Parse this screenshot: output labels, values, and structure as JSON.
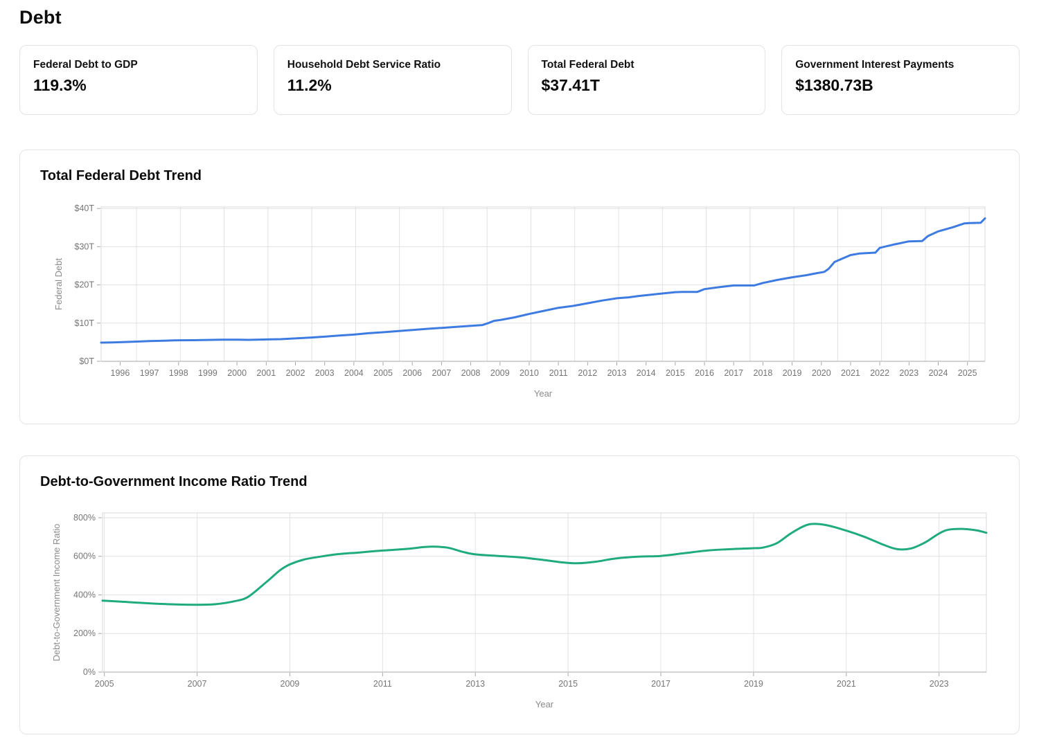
{
  "page": {
    "title": "Debt"
  },
  "stat_cards": [
    {
      "label": "Federal Debt to GDP",
      "value": "119.3%"
    },
    {
      "label": "Household Debt Service Ratio",
      "value": "11.2%"
    },
    {
      "label": "Total Federal Debt",
      "value": "$37.41T"
    },
    {
      "label": "Government Interest Payments",
      "value": "$1380.73B"
    }
  ],
  "chart_data": [
    {
      "type": "line",
      "title": "Total Federal Debt Trend",
      "xlabel": "Year",
      "ylabel": "Federal Debt",
      "line_color": "#3e7be0",
      "grid": true,
      "legend": "none",
      "xlim": [
        1995.35,
        2025.6
      ],
      "ylim": [
        0,
        40.4
      ],
      "x_ticks": {
        "values": [
          1996,
          1997,
          1998,
          1999,
          2000,
          2001,
          2002,
          2003,
          2004,
          2005,
          2006,
          2007,
          2008,
          2009,
          2010,
          2011,
          2012,
          2013,
          2014,
          2015,
          2016,
          2017,
          2018,
          2019,
          2020,
          2021,
          2022,
          2023,
          2024,
          2025
        ],
        "labels": [
          "1996",
          "1997",
          "1998",
          "1999",
          "2000",
          "2001",
          "2002",
          "2003",
          "2004",
          "2005",
          "2006",
          "2007",
          "2008",
          "2009",
          "2010",
          "2011",
          "2012",
          "2013",
          "2014",
          "2015",
          "2016",
          "2017",
          "2018",
          "2019",
          "2020",
          "2021",
          "2022",
          "2023",
          "2024",
          "2025"
        ]
      },
      "y_ticks": {
        "values": [
          0,
          10,
          20,
          30,
          40
        ],
        "labels": [
          "$0T",
          "$10T",
          "$20T",
          "$30T",
          "$40T"
        ]
      },
      "x_gridlines": [
        1996.56,
        1998.06,
        1999.56,
        2001.06,
        2002.56,
        2004.06,
        2005.56,
        2007.06,
        2008.56,
        2010.06,
        2011.56,
        2013.06,
        2014.56,
        2016.06,
        2017.56,
        2019.06,
        2020.56,
        2022.06,
        2023.56,
        2025.06
      ],
      "y_gridlines": [
        10,
        20,
        30,
        40
      ],
      "smooth": false,
      "series": [
        {
          "name": "Total Federal Debt ($T)",
          "points": [
            [
              1995.35,
              4.9
            ],
            [
              1995.7,
              4.95
            ],
            [
              1996,
              5.0
            ],
            [
              1996.5,
              5.15
            ],
            [
              1997,
              5.3
            ],
            [
              1997.5,
              5.4
            ],
            [
              1998,
              5.5
            ],
            [
              1998.5,
              5.52
            ],
            [
              1999,
              5.6
            ],
            [
              1999.5,
              5.65
            ],
            [
              2000,
              5.67
            ],
            [
              2000.4,
              5.62
            ],
            [
              2001,
              5.72
            ],
            [
              2001.5,
              5.8
            ],
            [
              2002,
              6.0
            ],
            [
              2002.5,
              6.2
            ],
            [
              2003,
              6.45
            ],
            [
              2003.5,
              6.75
            ],
            [
              2004,
              7.0
            ],
            [
              2004.5,
              7.35
            ],
            [
              2005,
              7.6
            ],
            [
              2005.5,
              7.9
            ],
            [
              2006,
              8.2
            ],
            [
              2006.5,
              8.5
            ],
            [
              2007,
              8.75
            ],
            [
              2007.5,
              9.0
            ],
            [
              2008,
              9.3
            ],
            [
              2008.4,
              9.5
            ],
            [
              2008.6,
              10.0
            ],
            [
              2008.8,
              10.6
            ],
            [
              2009,
              10.8
            ],
            [
              2009.5,
              11.5
            ],
            [
              2010,
              12.4
            ],
            [
              2010.5,
              13.2
            ],
            [
              2011,
              14.0
            ],
            [
              2011.5,
              14.5
            ],
            [
              2012,
              15.2
            ],
            [
              2012.5,
              15.9
            ],
            [
              2013,
              16.5
            ],
            [
              2013.4,
              16.74
            ],
            [
              2013.75,
              17.1
            ],
            [
              2014,
              17.3
            ],
            [
              2014.5,
              17.7
            ],
            [
              2015,
              18.1
            ],
            [
              2015.25,
              18.15
            ],
            [
              2015.75,
              18.15
            ],
            [
              2016,
              18.9
            ],
            [
              2016.5,
              19.4
            ],
            [
              2017,
              19.85
            ],
            [
              2017.7,
              19.85
            ],
            [
              2018,
              20.5
            ],
            [
              2018.5,
              21.3
            ],
            [
              2019,
              22.0
            ],
            [
              2019.5,
              22.55
            ],
            [
              2019.8,
              23.0
            ],
            [
              2020.1,
              23.4
            ],
            [
              2020.25,
              24.2
            ],
            [
              2020.45,
              26.0
            ],
            [
              2020.75,
              27.0
            ],
            [
              2021,
              27.8
            ],
            [
              2021.3,
              28.2
            ],
            [
              2021.85,
              28.45
            ],
            [
              2022,
              29.7
            ],
            [
              2022.5,
              30.6
            ],
            [
              2023,
              31.4
            ],
            [
              2023.45,
              31.46
            ],
            [
              2023.65,
              32.8
            ],
            [
              2024,
              34.0
            ],
            [
              2024.5,
              35.1
            ],
            [
              2024.9,
              36.1
            ],
            [
              2025.1,
              36.2
            ],
            [
              2025.45,
              36.25
            ],
            [
              2025.6,
              37.41
            ]
          ]
        }
      ]
    },
    {
      "type": "line",
      "title": "Debt-to-Government Income Ratio Trend",
      "xlabel": "Year",
      "ylabel": "Debt-to-Government Income Ratio",
      "line_color": "#1fab7c",
      "grid": true,
      "legend": "none",
      "xlim": [
        2004.96,
        2024.02
      ],
      "ylim": [
        0,
        825
      ],
      "x_ticks": {
        "values": [
          2005,
          2007,
          2009,
          2011,
          2013,
          2015,
          2017,
          2019,
          2021,
          2023
        ],
        "labels": [
          "2005",
          "2007",
          "2009",
          "2011",
          "2013",
          "2015",
          "2017",
          "2019",
          "2021",
          "2023"
        ]
      },
      "y_ticks": {
        "values": [
          0,
          200,
          400,
          600,
          800
        ],
        "labels": [
          "0%",
          "200%",
          "400%",
          "600%",
          "800%"
        ]
      },
      "x_gridlines": [
        2005,
        2007,
        2009,
        2011,
        2013,
        2015,
        2017,
        2019,
        2021,
        2023
      ],
      "y_gridlines": [
        200,
        400,
        600,
        800
      ],
      "smooth": true,
      "series": [
        {
          "name": "Debt-to-Government Income Ratio (%)",
          "points": [
            [
              2004.96,
              370
            ],
            [
              2005.3,
              366
            ],
            [
              2005.7,
              360
            ],
            [
              2006,
              356
            ],
            [
              2006.5,
              351
            ],
            [
              2007,
              349
            ],
            [
              2007.4,
              352
            ],
            [
              2007.8,
              367
            ],
            [
              2008.1,
              390
            ],
            [
              2008.5,
              468
            ],
            [
              2008.8,
              530
            ],
            [
              2009,
              558
            ],
            [
              2009.3,
              583
            ],
            [
              2009.6,
              596
            ],
            [
              2010,
              610
            ],
            [
              2010.5,
              620
            ],
            [
              2011,
              630
            ],
            [
              2011.5,
              638
            ],
            [
              2011.9,
              648
            ],
            [
              2012.1,
              650
            ],
            [
              2012.4,
              645
            ],
            [
              2012.7,
              625
            ],
            [
              2013,
              610
            ],
            [
              2013.5,
              602
            ],
            [
              2014,
              594
            ],
            [
              2014.5,
              580
            ],
            [
              2014.9,
              568
            ],
            [
              2015.2,
              564
            ],
            [
              2015.6,
              572
            ],
            [
              2016,
              588
            ],
            [
              2016.5,
              598
            ],
            [
              2017,
              602
            ],
            [
              2017.5,
              616
            ],
            [
              2018,
              630
            ],
            [
              2018.4,
              636
            ],
            [
              2019,
              642
            ],
            [
              2019.2,
              645
            ],
            [
              2019.5,
              668
            ],
            [
              2019.8,
              718
            ],
            [
              2020.1,
              758
            ],
            [
              2020.3,
              768
            ],
            [
              2020.6,
              760
            ],
            [
              2021,
              733
            ],
            [
              2021.4,
              700
            ],
            [
              2021.8,
              660
            ],
            [
              2022.1,
              637
            ],
            [
              2022.4,
              641
            ],
            [
              2022.7,
              672
            ],
            [
              2023,
              718
            ],
            [
              2023.2,
              738
            ],
            [
              2023.5,
              742
            ],
            [
              2023.8,
              735
            ],
            [
              2024.02,
              722
            ]
          ]
        }
      ]
    }
  ]
}
